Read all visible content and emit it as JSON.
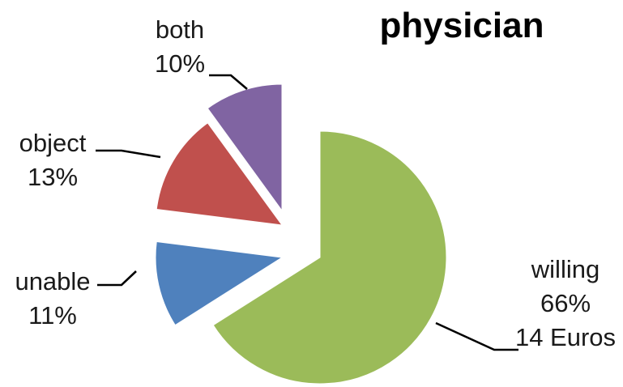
{
  "chart_data": {
    "type": "pie",
    "title": "physician",
    "slices": [
      {
        "category": "willing",
        "value": 66,
        "percent_label": "66%",
        "extra_label": "14 Euros",
        "color": "#9BBB59"
      },
      {
        "category": "unable",
        "value": 11,
        "percent_label": "11%",
        "color": "#4F81BD"
      },
      {
        "category": "object",
        "value": 13,
        "percent_label": "13%",
        "color": "#C0504D"
      },
      {
        "category": "both",
        "value": 10,
        "percent_label": "10%",
        "color": "#8064A2"
      }
    ],
    "exploded": true,
    "start_angle": "12 o'clock",
    "direction": "clockwise",
    "legend": "none"
  }
}
